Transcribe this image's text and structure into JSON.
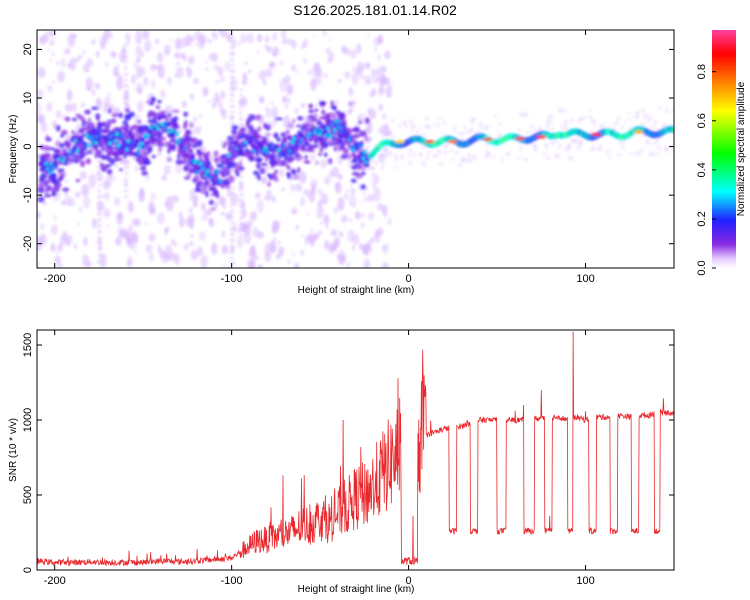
{
  "title": "S126.2025.181.01.14.R02",
  "chart_data": [
    {
      "type": "heatmap",
      "xlabel": "Height of straight line (km)",
      "ylabel": "Frequency (Hz)",
      "xlim": [
        -210,
        150
      ],
      "ylim": [
        -25,
        24
      ],
      "x_ticks": [
        -200,
        -100,
        0,
        100
      ],
      "y_ticks": [
        -20,
        -10,
        0,
        10,
        20
      ],
      "grid": false,
      "colorbar": {
        "label": "Normalized spectral amplitude",
        "ticks": [
          0.0,
          0.2,
          0.4,
          0.6,
          0.8
        ],
        "range": [
          0.0,
          0.97
        ],
        "colormap": [
          "#ffffff",
          "#e4c8ff",
          "#8a2be2",
          "#2020ff",
          "#00ffff",
          "#00ff00",
          "#ffff00",
          "#ff8000",
          "#ff0000",
          "#ff40a0"
        ]
      },
      "ridge": {
        "x": [
          -207,
          -200,
          -190,
          -180,
          -170,
          -160,
          -150,
          -143,
          -138,
          -132,
          -126,
          -120,
          -114,
          -110,
          -104,
          -98,
          -92,
          -85,
          -78,
          -70,
          -62,
          -55,
          -48,
          -42,
          -36,
          -32,
          -28,
          -24,
          -20,
          -15,
          -10,
          -5,
          0,
          10,
          20,
          30,
          40,
          50,
          60,
          70,
          80,
          85,
          90,
          100,
          110,
          120,
          130,
          140,
          148
        ],
        "y": [
          -5,
          -4,
          0,
          1.5,
          2,
          1,
          0,
          4,
          5,
          3,
          0,
          -4,
          -6,
          -7,
          -5,
          0,
          1,
          0.5,
          -1,
          -1,
          1,
          2,
          3,
          4,
          4,
          1,
          -1,
          -2,
          -1,
          0,
          0.5,
          1,
          1,
          1,
          1,
          1,
          1.5,
          1.5,
          1.5,
          2,
          2,
          3,
          2.5,
          2.5,
          2.5,
          2.5,
          3,
          3,
          3
        ]
      },
      "streaks": [
        {
          "x": -100,
          "y_from": -25,
          "y_to": 24
        },
        {
          "x": -95,
          "y_from": -18,
          "y_to": 12
        },
        {
          "x": -160,
          "y_from": -10,
          "y_to": 22
        },
        {
          "x": -175,
          "y_from": -22,
          "y_to": 10
        }
      ]
    },
    {
      "type": "line",
      "xlabel": "Height of straight line (km)",
      "ylabel": "SNR (10 * v/v)",
      "xlim": [
        -210,
        150
      ],
      "ylim": [
        0,
        1600
      ],
      "x_ticks": [
        -200,
        -100,
        0,
        100
      ],
      "y_ticks": [
        0,
        500,
        1000,
        1500
      ],
      "grid": false,
      "series": [
        {
          "color": "#e8282c",
          "x": [
            -210,
            -200,
            -190,
            -180,
            -170,
            -160,
            -150,
            -140,
            -130,
            -120,
            -110,
            -100,
            -95,
            -90,
            -85,
            -80,
            -75,
            -70,
            -65,
            -60,
            -55,
            -50,
            -45,
            -40,
            -35,
            -30,
            -25,
            -20,
            -15,
            -10,
            -5,
            0,
            5,
            10,
            15,
            20,
            25,
            30,
            35,
            40,
            45,
            50,
            55,
            60,
            65,
            70,
            75,
            80,
            85,
            90,
            95,
            100,
            105,
            110,
            115,
            120,
            125,
            130,
            135,
            140,
            145,
            150
          ],
          "y": [
            60,
            50,
            50,
            55,
            50,
            50,
            50,
            60,
            55,
            60,
            70,
            80,
            120,
            160,
            200,
            200,
            220,
            240,
            260,
            300,
            300,
            350,
            320,
            380,
            420,
            480,
            500,
            560,
            640,
            720,
            800,
            850,
            880,
            900,
            920,
            940,
            950,
            960,
            980,
            1000,
            1000,
            1000,
            1000,
            1000,
            1000,
            1010,
            1010,
            1020,
            1020,
            1000,
            1020,
            1000,
            1020,
            1020,
            1020,
            1030,
            1020,
            1030,
            1030,
            1050,
            1050,
            1050
          ]
        }
      ],
      "dropouts": [
        {
          "from": -4,
          "to": 5,
          "level": 60
        },
        {
          "from": 23,
          "to": 27,
          "level": 260
        },
        {
          "from": 35,
          "to": 39,
          "level": 260
        },
        {
          "from": 50,
          "to": 55,
          "level": 260
        },
        {
          "from": 65,
          "to": 71,
          "level": 260
        },
        {
          "from": 77,
          "to": 81,
          "level": 260
        },
        {
          "from": 90,
          "to": 93,
          "level": 260
        },
        {
          "from": 102,
          "to": 106,
          "level": 260
        },
        {
          "from": 114,
          "to": 118,
          "level": 260
        },
        {
          "from": 126,
          "to": 130,
          "level": 260
        },
        {
          "from": 139,
          "to": 142,
          "level": 260
        }
      ],
      "spikes": [
        {
          "x": -37,
          "y": 1000
        },
        {
          "x": -27,
          "y": 820
        },
        {
          "x": 65,
          "y": 1100
        },
        {
          "x": 75,
          "y": 1200
        },
        {
          "x": 93,
          "y": 1590
        }
      ]
    }
  ]
}
